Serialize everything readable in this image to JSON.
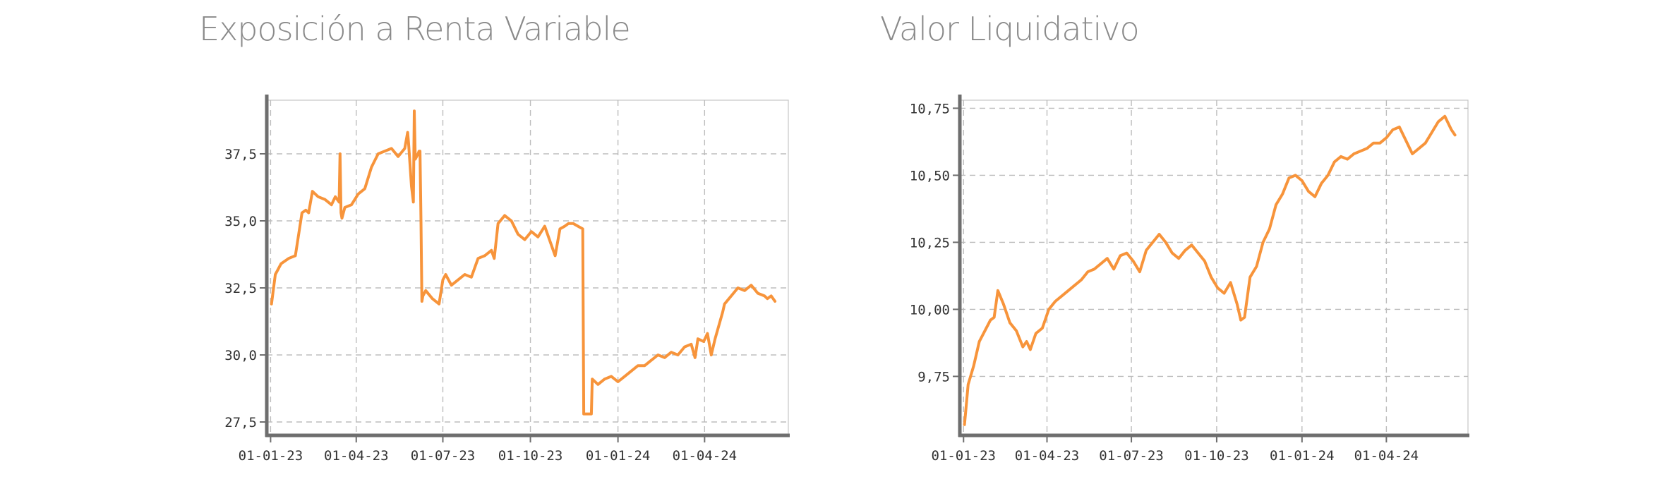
{
  "colors": {
    "series": "#F7943B",
    "title": "#8a8a8a",
    "axis": "#6e6e6e",
    "grid": "#bdbdbd"
  },
  "chart_data": [
    {
      "type": "line",
      "title": "Exposición a Renta Variable",
      "xlabel": "",
      "ylabel": "",
      "grid": true,
      "x_ticks": [
        "01-01-23",
        "01-04-23",
        "01-07-23",
        "01-10-23",
        "01-01-24",
        "01-04-24"
      ],
      "y_ticks": [
        "27,5",
        "30,0",
        "32,5",
        "35,0",
        "37,5"
      ],
      "ylim": [
        27.0,
        39.5
      ],
      "xlim": [
        "2022-12-28",
        "2024-06-28"
      ],
      "series": [
        {
          "x": [
            "2023-01-02",
            "2023-01-06",
            "2023-01-12",
            "2023-01-20",
            "2023-01-27",
            "2023-02-03",
            "2023-02-07",
            "2023-02-10",
            "2023-02-14",
            "2023-02-20",
            "2023-02-27",
            "2023-03-06",
            "2023-03-10",
            "2023-03-14",
            "2023-03-15",
            "2023-03-16",
            "2023-03-17",
            "2023-03-20",
            "2023-03-27",
            "2023-04-03",
            "2023-04-10",
            "2023-04-17",
            "2023-04-24",
            "2023-05-01",
            "2023-05-08",
            "2023-05-15",
            "2023-05-22",
            "2023-05-25",
            "2023-05-26",
            "2023-05-29",
            "2023-05-31",
            "2023-06-01",
            "2023-06-02",
            "2023-06-05",
            "2023-06-06",
            "2023-06-07",
            "2023-06-08",
            "2023-06-09",
            "2023-06-10",
            "2023-06-13",
            "2023-06-20",
            "2023-06-27",
            "2023-07-01",
            "2023-07-04",
            "2023-07-10",
            "2023-07-17",
            "2023-07-24",
            "2023-07-31",
            "2023-08-07",
            "2023-08-14",
            "2023-08-21",
            "2023-08-24",
            "2023-08-28",
            "2023-09-04",
            "2023-09-11",
            "2023-09-18",
            "2023-09-25",
            "2023-10-02",
            "2023-10-09",
            "2023-10-16",
            "2023-10-23",
            "2023-10-27",
            "2023-11-01",
            "2023-11-06",
            "2023-11-10",
            "2023-11-15",
            "2023-11-20",
            "2023-11-25",
            "2023-11-26",
            "2023-12-04",
            "2023-12-05",
            "2023-12-11",
            "2023-12-18",
            "2023-12-25",
            "2024-01-01",
            "2024-01-08",
            "2024-01-15",
            "2024-01-22",
            "2024-01-29",
            "2024-02-05",
            "2024-02-12",
            "2024-02-19",
            "2024-02-26",
            "2024-03-04",
            "2024-03-11",
            "2024-03-18",
            "2024-03-22",
            "2024-03-25",
            "2024-03-31",
            "2024-04-04",
            "2024-04-08",
            "2024-04-12",
            "2024-04-20",
            "2024-04-22",
            "2024-04-29",
            "2024-05-06",
            "2024-05-13",
            "2024-05-20",
            "2024-05-27",
            "2024-06-03",
            "2024-06-06",
            "2024-06-10",
            "2024-06-14"
          ],
          "values": [
            31.9,
            33.0,
            33.4,
            33.6,
            33.7,
            35.3,
            35.4,
            35.3,
            36.1,
            35.9,
            35.8,
            35.6,
            35.9,
            35.7,
            37.5,
            35.3,
            35.1,
            35.5,
            35.6,
            36.0,
            36.2,
            37.0,
            37.5,
            37.6,
            37.7,
            37.4,
            37.7,
            38.3,
            37.9,
            36.3,
            35.7,
            39.1,
            37.3,
            37.5,
            37.6,
            37.6,
            35.0,
            32.0,
            32.2,
            32.4,
            32.1,
            31.9,
            32.8,
            33.0,
            32.6,
            32.8,
            33.0,
            32.9,
            33.6,
            33.7,
            33.9,
            33.6,
            34.9,
            35.2,
            35.0,
            34.5,
            34.3,
            34.6,
            34.4,
            34.8,
            34.1,
            33.7,
            34.7,
            34.8,
            34.9,
            34.9,
            34.8,
            34.7,
            27.8,
            27.8,
            29.1,
            28.9,
            29.1,
            29.2,
            29.0,
            29.2,
            29.4,
            29.6,
            29.6,
            29.8,
            30.0,
            29.9,
            30.1,
            30.0,
            30.3,
            30.4,
            29.9,
            30.6,
            30.5,
            30.8,
            30.0,
            30.6,
            31.6,
            31.9,
            32.2,
            32.5,
            32.4,
            32.6,
            32.3,
            32.2,
            32.1,
            32.2,
            32.0
          ]
        }
      ]
    },
    {
      "type": "line",
      "title": "Valor Liquidativo",
      "xlabel": "",
      "ylabel": "",
      "grid": true,
      "x_ticks": [
        "01-01-23",
        "01-04-23",
        "01-07-23",
        "01-10-23",
        "01-01-24",
        "01-04-24"
      ],
      "y_ticks": [
        "9,75",
        "10,00",
        "10,25",
        "10,50",
        "10,75"
      ],
      "ylim": [
        9.53,
        10.78
      ],
      "xlim": [
        "2022-12-28",
        "2024-06-28"
      ],
      "series": [
        {
          "x": [
            "2023-01-02",
            "2023-01-06",
            "2023-01-12",
            "2023-01-18",
            "2023-01-24",
            "2023-01-30",
            "2023-02-03",
            "2023-02-07",
            "2023-02-13",
            "2023-02-20",
            "2023-02-27",
            "2023-03-06",
            "2023-03-10",
            "2023-03-14",
            "2023-03-20",
            "2023-03-27",
            "2023-04-03",
            "2023-04-10",
            "2023-04-17",
            "2023-04-24",
            "2023-05-01",
            "2023-05-08",
            "2023-05-15",
            "2023-05-22",
            "2023-05-29",
            "2023-06-05",
            "2023-06-12",
            "2023-06-19",
            "2023-06-26",
            "2023-07-03",
            "2023-07-10",
            "2023-07-17",
            "2023-07-24",
            "2023-07-31",
            "2023-08-07",
            "2023-08-14",
            "2023-08-21",
            "2023-08-28",
            "2023-09-04",
            "2023-09-11",
            "2023-09-18",
            "2023-09-25",
            "2023-10-02",
            "2023-10-09",
            "2023-10-16",
            "2023-10-23",
            "2023-10-27",
            "2023-10-31",
            "2023-11-06",
            "2023-11-13",
            "2023-11-20",
            "2023-11-27",
            "2023-12-04",
            "2023-12-11",
            "2023-12-18",
            "2023-12-25",
            "2024-01-01",
            "2024-01-08",
            "2024-01-15",
            "2024-01-22",
            "2024-01-29",
            "2024-02-05",
            "2024-02-12",
            "2024-02-19",
            "2024-02-26",
            "2024-03-04",
            "2024-03-11",
            "2024-03-18",
            "2024-03-25",
            "2024-04-01",
            "2024-04-08",
            "2024-04-15",
            "2024-04-22",
            "2024-04-29",
            "2024-05-06",
            "2024-05-13",
            "2024-05-20",
            "2024-05-27",
            "2024-06-03",
            "2024-06-10",
            "2024-06-14"
          ],
          "values": [
            9.57,
            9.72,
            9.79,
            9.88,
            9.92,
            9.96,
            9.97,
            10.07,
            10.02,
            9.95,
            9.92,
            9.86,
            9.88,
            9.85,
            9.91,
            9.93,
            10.0,
            10.03,
            10.05,
            10.07,
            10.09,
            10.11,
            10.14,
            10.15,
            10.17,
            10.19,
            10.15,
            10.2,
            10.21,
            10.18,
            10.14,
            10.22,
            10.25,
            10.28,
            10.25,
            10.21,
            10.19,
            10.22,
            10.24,
            10.21,
            10.18,
            10.12,
            10.08,
            10.06,
            10.1,
            10.02,
            9.96,
            9.97,
            10.12,
            10.16,
            10.25,
            10.3,
            10.39,
            10.43,
            10.49,
            10.5,
            10.48,
            10.44,
            10.42,
            10.47,
            10.5,
            10.55,
            10.57,
            10.56,
            10.58,
            10.59,
            10.6,
            10.62,
            10.62,
            10.64,
            10.67,
            10.68,
            10.63,
            10.58,
            10.6,
            10.62,
            10.66,
            10.7,
            10.72,
            10.67,
            10.65
          ]
        }
      ]
    }
  ]
}
